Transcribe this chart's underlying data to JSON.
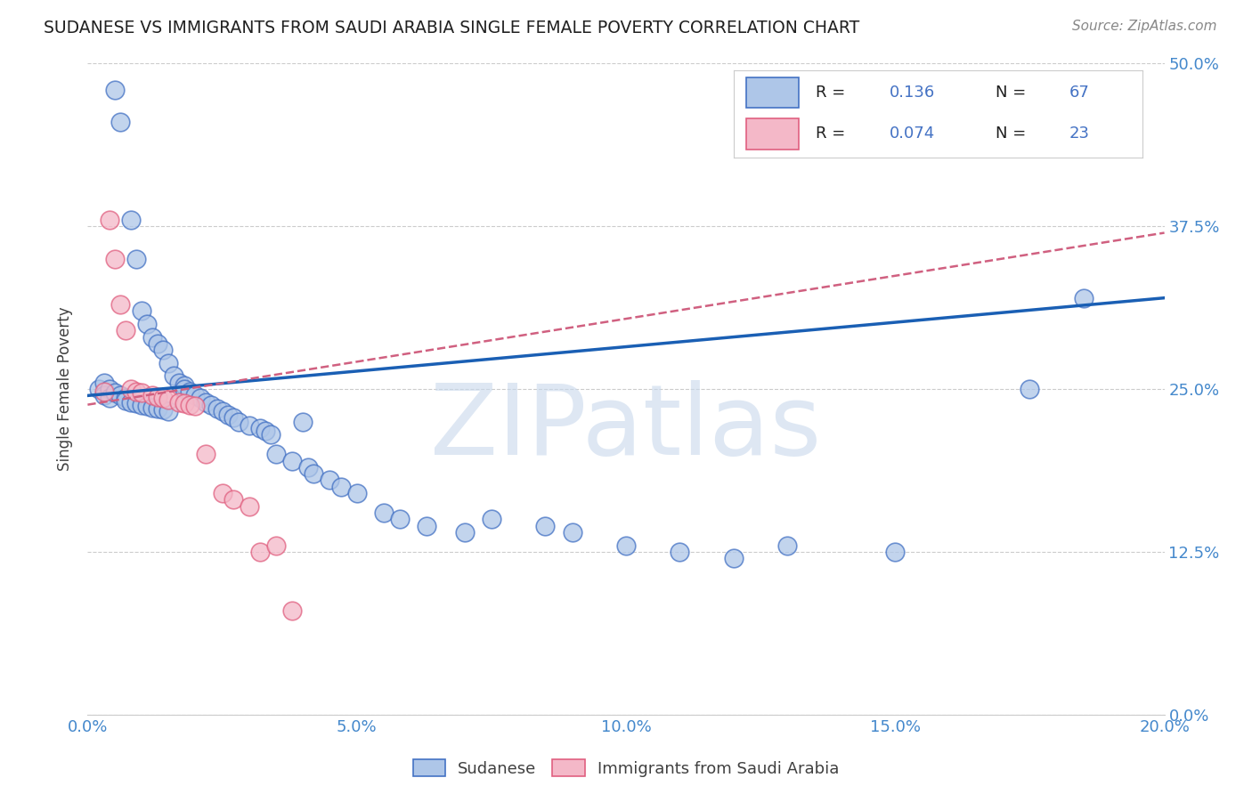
{
  "title": "SUDANESE VS IMMIGRANTS FROM SAUDI ARABIA SINGLE FEMALE POVERTY CORRELATION CHART",
  "source": "Source: ZipAtlas.com",
  "xlabel_ticks": [
    "0.0%",
    "5.0%",
    "10.0%",
    "15.0%",
    "20.0%"
  ],
  "xlabel_tick_vals": [
    0.0,
    0.05,
    0.1,
    0.15,
    0.2
  ],
  "ylabel": "Single Female Poverty",
  "ylabel_ticks": [
    "0.0%",
    "12.5%",
    "25.0%",
    "37.5%",
    "50.0%"
  ],
  "ylabel_tick_vals": [
    0.0,
    0.125,
    0.25,
    0.375,
    0.5
  ],
  "xlim": [
    0.0,
    0.2
  ],
  "ylim": [
    0.0,
    0.5
  ],
  "watermark": "ZIPatlas",
  "sudanese_R": 0.136,
  "sudanese_N": 67,
  "saudi_R": 0.074,
  "saudi_N": 23,
  "blue_fill": "#aec6e8",
  "blue_edge": "#4472c4",
  "pink_fill": "#f4b8c8",
  "pink_edge": "#e06080",
  "blue_line_color": "#1a5fb4",
  "pink_line_color": "#d06080",
  "grid_color": "#cccccc",
  "title_color": "#202020",
  "axis_label_color": "#404040",
  "tick_color": "#4488cc",
  "watermark_color": "#c8d8ec",
  "source_color": "#888888",
  "sudanese_x": [
    0.002,
    0.003,
    0.003,
    0.004,
    0.004,
    0.005,
    0.005,
    0.006,
    0.006,
    0.007,
    0.007,
    0.008,
    0.008,
    0.009,
    0.009,
    0.01,
    0.01,
    0.011,
    0.011,
    0.012,
    0.012,
    0.013,
    0.013,
    0.014,
    0.014,
    0.015,
    0.015,
    0.016,
    0.017,
    0.018,
    0.018,
    0.019,
    0.02,
    0.021,
    0.022,
    0.023,
    0.024,
    0.025,
    0.026,
    0.027,
    0.028,
    0.03,
    0.032,
    0.033,
    0.034,
    0.035,
    0.038,
    0.04,
    0.041,
    0.042,
    0.045,
    0.047,
    0.05,
    0.055,
    0.058,
    0.063,
    0.07,
    0.075,
    0.085,
    0.09,
    0.1,
    0.11,
    0.12,
    0.13,
    0.15,
    0.175,
    0.185
  ],
  "sudanese_y": [
    0.25,
    0.255,
    0.245,
    0.25,
    0.243,
    0.48,
    0.247,
    0.455,
    0.245,
    0.243,
    0.241,
    0.38,
    0.24,
    0.35,
    0.239,
    0.31,
    0.238,
    0.3,
    0.237,
    0.29,
    0.236,
    0.285,
    0.235,
    0.28,
    0.234,
    0.27,
    0.233,
    0.26,
    0.255,
    0.253,
    0.25,
    0.248,
    0.245,
    0.243,
    0.24,
    0.238,
    0.235,
    0.233,
    0.23,
    0.228,
    0.225,
    0.222,
    0.22,
    0.218,
    0.215,
    0.2,
    0.195,
    0.225,
    0.19,
    0.185,
    0.18,
    0.175,
    0.17,
    0.155,
    0.15,
    0.145,
    0.14,
    0.15,
    0.145,
    0.14,
    0.13,
    0.125,
    0.12,
    0.13,
    0.125,
    0.25,
    0.32
  ],
  "saudi_x": [
    0.003,
    0.004,
    0.005,
    0.006,
    0.007,
    0.008,
    0.009,
    0.01,
    0.012,
    0.013,
    0.014,
    0.015,
    0.017,
    0.018,
    0.019,
    0.02,
    0.022,
    0.025,
    0.027,
    0.03,
    0.032,
    0.035,
    0.038
  ],
  "saudi_y": [
    0.248,
    0.38,
    0.35,
    0.315,
    0.295,
    0.25,
    0.248,
    0.247,
    0.245,
    0.244,
    0.243,
    0.242,
    0.24,
    0.239,
    0.238,
    0.237,
    0.2,
    0.17,
    0.165,
    0.16,
    0.125,
    0.13,
    0.08
  ],
  "blue_trend_x0": 0.0,
  "blue_trend_y0": 0.245,
  "blue_trend_x1": 0.2,
  "blue_trend_y1": 0.32,
  "pink_trend_x0": 0.0,
  "pink_trend_y0": 0.238,
  "pink_trend_x1": 0.2,
  "pink_trend_y1": 0.37
}
